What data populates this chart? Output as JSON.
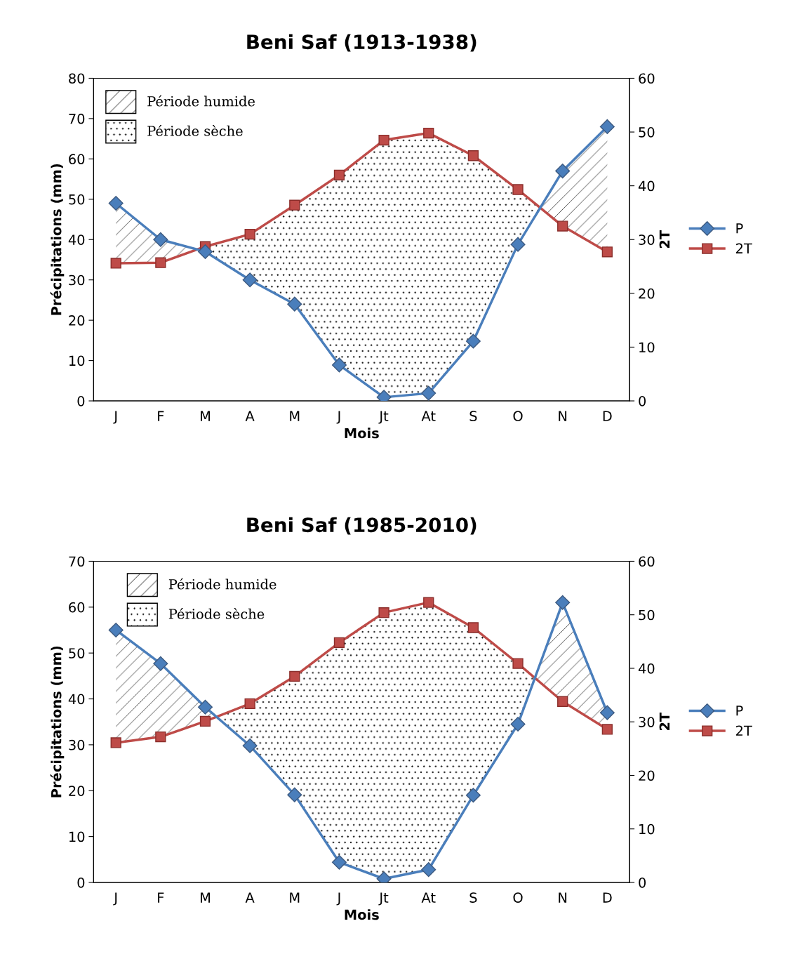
{
  "chart_data": [
    {
      "type": "line",
      "title": "Beni Saf (1913-1938)",
      "xlabel": "Mois",
      "ylabel": "Précipitations (mm)",
      "y2label": "2T",
      "categories": [
        "J",
        "F",
        "M",
        "A",
        "M",
        "J",
        "Jt",
        "At",
        "S",
        "O",
        "N",
        "D"
      ],
      "series": [
        {
          "name": "P",
          "color": "#4a7ebb",
          "marker": "diamond",
          "values": [
            49,
            40,
            37,
            30,
            24,
            8.9,
            0.9,
            1.9,
            14.8,
            38.8,
            57,
            68
          ]
        },
        {
          "name": "2T",
          "color": "#be4b48",
          "marker": "square",
          "axis": "y2",
          "values": [
            25.6,
            25.7,
            28.7,
            31,
            36.4,
            42,
            48.5,
            49.8,
            45.6,
            39.3,
            32.5,
            27.7
          ]
        }
      ],
      "ylim": [
        0,
        80
      ],
      "yticks": [
        0,
        10,
        20,
        30,
        40,
        50,
        60,
        70,
        80
      ],
      "y2lim": [
        0,
        60
      ],
      "y2ticks": [
        0,
        10,
        20,
        30,
        40,
        50,
        60
      ],
      "annotations": [
        "Période humide",
        "Période sèche"
      ],
      "legend": "right",
      "grid": false
    },
    {
      "type": "line",
      "title": "Beni Saf (1985-2010)",
      "xlabel": "Mois",
      "ylabel": "Précipitations (mm)",
      "y2label": "2T",
      "categories": [
        "J",
        "F",
        "M",
        "A",
        "M",
        "J",
        "Jt",
        "At",
        "S",
        "O",
        "N",
        "D"
      ],
      "series": [
        {
          "name": "P",
          "color": "#4a7ebb",
          "marker": "diamond",
          "values": [
            55,
            47.7,
            38.2,
            29.8,
            19.1,
            4.4,
            0.8,
            2.8,
            19,
            34.5,
            61,
            37
          ]
        },
        {
          "name": "2T",
          "color": "#be4b48",
          "marker": "square",
          "axis": "y2",
          "values": [
            26.1,
            27.2,
            30.1,
            33.4,
            38.5,
            44.8,
            50.4,
            52.3,
            47.6,
            40.9,
            33.8,
            28.6
          ]
        }
      ],
      "ylim": [
        0,
        70
      ],
      "yticks": [
        0,
        10,
        20,
        30,
        40,
        50,
        60,
        70
      ],
      "y2lim": [
        0,
        60
      ],
      "y2ticks": [
        0,
        10,
        20,
        30,
        40,
        50,
        60
      ],
      "annotations": [
        "Période humide",
        "Période sèche"
      ],
      "legend": "right",
      "grid": false
    }
  ]
}
